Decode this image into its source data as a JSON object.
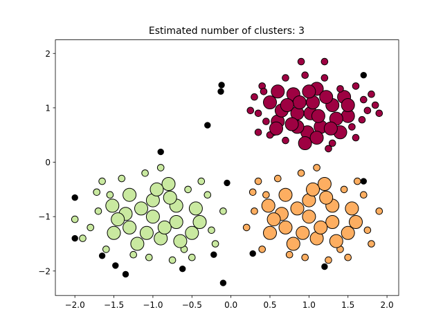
{
  "chart_data": {
    "type": "scatter",
    "title": "Estimated number of clusters: 3",
    "xlabel": "",
    "ylabel": "",
    "xlim": [
      -2.25,
      2.15
    ],
    "ylim": [
      -2.45,
      2.25
    ],
    "xticks": [
      -2.0,
      -1.5,
      -1.0,
      -0.5,
      0.0,
      0.5,
      1.0,
      1.5,
      2.0
    ],
    "xtick_labels": [
      "−2.0",
      "−1.5",
      "−1.0",
      "−0.5",
      "0.0",
      "0.5",
      "1.0",
      "1.5",
      "2.0"
    ],
    "yticks": [
      -2,
      -1,
      0,
      1,
      2
    ],
    "ytick_labels": [
      "−2",
      "−1",
      "0",
      "1",
      "2"
    ],
    "grid": false,
    "series": [
      {
        "color": "#9e0142",
        "center": [
          1.0,
          0.9
        ],
        "spread": [
          0.3,
          0.3
        ],
        "points": [
          [
            0.98,
            0.55
          ],
          [
            1.02,
            0.9
          ],
          [
            0.85,
            0.65
          ],
          [
            1.3,
            1.05
          ],
          [
            0.6,
            0.75
          ],
          [
            1.15,
            0.65
          ],
          [
            0.8,
            1.25
          ],
          [
            1.1,
            1.35
          ],
          [
            0.5,
            1.1
          ],
          [
            1.5,
            0.85
          ],
          [
            1.4,
            0.55
          ],
          [
            0.7,
            0.4
          ],
          [
            1.2,
            1.85
          ],
          [
            0.9,
            1.85
          ],
          [
            0.35,
            0.9
          ],
          [
            1.7,
            1.15
          ],
          [
            1.8,
            1.25
          ],
          [
            0.25,
            0.95
          ],
          [
            0.4,
            1.4
          ],
          [
            1.6,
            1.4
          ],
          [
            1.3,
            0.35
          ],
          [
            0.55,
            0.55
          ],
          [
            0.95,
            1.6
          ],
          [
            1.25,
            0.25
          ],
          [
            0.7,
            1.55
          ],
          [
            1.45,
            1.2
          ],
          [
            1.05,
            1.1
          ],
          [
            0.65,
            0.95
          ],
          [
            1.35,
            0.8
          ],
          [
            0.85,
            0.9
          ],
          [
            1.55,
            0.65
          ],
          [
            1.12,
            0.85
          ],
          [
            0.45,
            0.75
          ],
          [
            1.75,
            0.95
          ],
          [
            0.3,
            1.2
          ],
          [
            1.9,
            0.9
          ],
          [
            0.95,
            0.35
          ],
          [
            1.6,
            0.45
          ],
          [
            0.5,
            0.5
          ],
          [
            1.2,
            1.55
          ],
          [
            0.78,
            0.7
          ],
          [
            1.0,
            1.3
          ],
          [
            1.4,
            1.35
          ],
          [
            0.6,
            1.3
          ],
          [
            1.68,
            0.78
          ],
          [
            0.35,
            0.55
          ],
          [
            0.88,
            1.1
          ],
          [
            1.22,
            1.2
          ],
          [
            0.72,
            1.05
          ],
          [
            1.5,
            1.05
          ],
          [
            0.42,
            1.3
          ],
          [
            1.1,
            0.45
          ],
          [
            1.85,
            1.05
          ],
          [
            0.58,
            0.62
          ],
          [
            1.28,
            0.62
          ]
        ]
      },
      {
        "color": "#fdae61",
        "center": [
          1.0,
          -1.0
        ],
        "spread": [
          0.35,
          0.35
        ],
        "points": [
          [
            1.0,
            -1.0
          ],
          [
            0.7,
            -0.6
          ],
          [
            1.3,
            -0.8
          ],
          [
            0.5,
            -1.3
          ],
          [
            1.1,
            -1.4
          ],
          [
            0.3,
            -0.9
          ],
          [
            1.6,
            -1.1
          ],
          [
            0.8,
            -1.5
          ],
          [
            1.4,
            -1.6
          ],
          [
            0.6,
            -0.3
          ],
          [
            1.2,
            -0.4
          ],
          [
            1.7,
            -0.6
          ],
          [
            0.9,
            -0.2
          ],
          [
            1.1,
            -0.1
          ],
          [
            0.4,
            -1.6
          ],
          [
            1.5,
            -1.3
          ],
          [
            0.2,
            -1.2
          ],
          [
            1.8,
            -1.5
          ],
          [
            1.3,
            -1.1
          ],
          [
            0.7,
            -1.2
          ],
          [
            1.0,
            -0.7
          ],
          [
            1.55,
            -0.85
          ],
          [
            0.45,
            -0.6
          ],
          [
            1.9,
            -0.9
          ],
          [
            0.95,
            -1.75
          ],
          [
            1.25,
            -1.8
          ],
          [
            0.65,
            -0.95
          ],
          [
            1.45,
            -0.5
          ],
          [
            0.35,
            -0.35
          ],
          [
            1.75,
            -1.25
          ],
          [
            0.85,
            -0.85
          ],
          [
            1.15,
            -1.2
          ],
          [
            0.55,
            -1.05
          ],
          [
            1.35,
            -1.45
          ],
          [
            0.75,
            -1.7
          ],
          [
            1.05,
            -0.5
          ],
          [
            1.62,
            -0.35
          ],
          [
            0.48,
            -0.8
          ],
          [
            1.22,
            -0.65
          ],
          [
            0.92,
            -1.3
          ],
          [
            1.5,
            -1.75
          ],
          [
            0.28,
            -0.55
          ]
        ]
      },
      {
        "color": "#c9e9a0",
        "center": [
          -1.0,
          -1.0
        ],
        "spread": [
          0.35,
          0.35
        ],
        "points": [
          [
            -1.0,
            -1.0
          ],
          [
            -1.3,
            -0.6
          ],
          [
            -0.7,
            -0.8
          ],
          [
            -1.5,
            -1.3
          ],
          [
            -0.9,
            -1.4
          ],
          [
            -1.7,
            -0.9
          ],
          [
            -0.4,
            -1.1
          ],
          [
            -1.2,
            -1.5
          ],
          [
            -0.6,
            -1.6
          ],
          [
            -1.4,
            -0.3
          ],
          [
            -0.8,
            -0.4
          ],
          [
            -0.3,
            -0.6
          ],
          [
            -1.1,
            -0.2
          ],
          [
            -0.9,
            -0.1
          ],
          [
            -1.6,
            -1.6
          ],
          [
            -0.5,
            -1.3
          ],
          [
            -1.8,
            -1.2
          ],
          [
            -0.2,
            -1.5
          ],
          [
            -0.7,
            -1.1
          ],
          [
            -1.3,
            -1.2
          ],
          [
            -1.0,
            -0.7
          ],
          [
            -0.45,
            -0.85
          ],
          [
            -1.55,
            -0.6
          ],
          [
            -0.1,
            -0.9
          ],
          [
            -1.05,
            -1.75
          ],
          [
            -0.75,
            -1.8
          ],
          [
            -1.35,
            -0.95
          ],
          [
            -0.55,
            -0.5
          ],
          [
            -1.65,
            -0.35
          ],
          [
            -0.25,
            -1.25
          ],
          [
            -1.15,
            -0.85
          ],
          [
            -0.85,
            -1.2
          ],
          [
            -1.45,
            -1.05
          ],
          [
            -0.65,
            -1.45
          ],
          [
            -1.25,
            -1.7
          ],
          [
            -0.95,
            -0.5
          ],
          [
            -0.38,
            -0.35
          ],
          [
            -1.52,
            -0.8
          ],
          [
            -0.78,
            -0.65
          ],
          [
            -1.08,
            -1.3
          ],
          [
            -0.5,
            -1.75
          ],
          [
            -1.72,
            -0.55
          ],
          [
            -2.0,
            -1.05
          ],
          [
            -1.9,
            -1.4
          ]
        ]
      },
      {
        "color": "#000000",
        "points": [
          [
            -0.12,
            1.42
          ],
          [
            -0.13,
            1.3
          ],
          [
            -0.3,
            0.68
          ],
          [
            -0.9,
            0.19
          ],
          [
            -0.05,
            -0.38
          ],
          [
            -2.0,
            -0.65
          ],
          [
            -2.0,
            -1.4
          ],
          [
            -1.65,
            -1.72
          ],
          [
            -1.48,
            -1.9
          ],
          [
            -1.35,
            -2.06
          ],
          [
            -0.62,
            -1.96
          ],
          [
            -0.22,
            -1.7
          ],
          [
            -0.1,
            -2.22
          ],
          [
            0.28,
            -1.68
          ],
          [
            1.2,
            -1.92
          ],
          [
            1.7,
            1.6
          ],
          [
            1.7,
            -0.35
          ]
        ]
      }
    ]
  }
}
